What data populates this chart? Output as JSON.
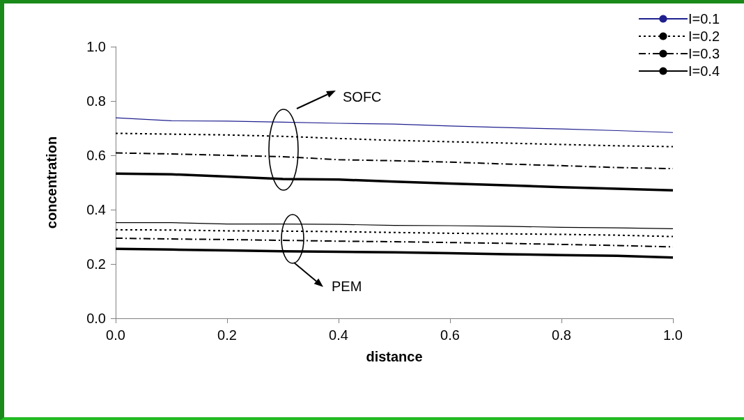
{
  "chart_data": {
    "type": "line",
    "xlabel": "distance",
    "ylabel": "concentration",
    "xlim": [
      0,
      1
    ],
    "ylim": [
      0,
      1
    ],
    "xticks": [
      {
        "value": 0,
        "label": "0.0"
      },
      {
        "value": 0.2,
        "label": "0.2"
      },
      {
        "value": 0.4,
        "label": "0.4"
      },
      {
        "value": 0.6,
        "label": "0.6"
      },
      {
        "value": 0.8,
        "label": "0.8"
      },
      {
        "value": 1,
        "label": "1.0"
      }
    ],
    "yticks": [
      {
        "value": 0,
        "label": "0.0"
      },
      {
        "value": 0.2,
        "label": "0.2"
      },
      {
        "value": 0.4,
        "label": "0.4"
      },
      {
        "value": 0.6,
        "label": "0.6"
      },
      {
        "value": 0.8,
        "label": "0.8"
      },
      {
        "value": 1,
        "label": "1.0"
      }
    ],
    "x": [
      0,
      0.1,
      0.2,
      0.3,
      0.4,
      0.5,
      0.6,
      0.7,
      0.8,
      0.9,
      1
    ],
    "grid": false,
    "legend": "top right",
    "marker": "none",
    "annotations": [
      "SOFC",
      "PEM"
    ],
    "series": [
      {
        "name": "I=0.1",
        "color": "#1f1f8f",
        "line_style": "solid",
        "values": [
          0.738,
          0.727,
          0.726,
          0.722,
          0.718,
          0.715,
          0.708,
          0.702,
          0.697,
          0.691,
          0.684
        ]
      },
      {
        "name": "I=0.2",
        "color": "#000000",
        "line_style": "dotted",
        "values": [
          0.681,
          0.678,
          0.675,
          0.67,
          0.662,
          0.655,
          0.65,
          0.645,
          0.64,
          0.635,
          0.632
        ]
      },
      {
        "name": "I=0.3",
        "color": "#000000",
        "line_style": "dashed",
        "values": [
          0.609,
          0.605,
          0.6,
          0.595,
          0.584,
          0.58,
          0.575,
          0.568,
          0.562,
          0.555,
          0.551
        ]
      },
      {
        "name": "I=0.4",
        "color": "#000000",
        "line_style": "solid",
        "values": [
          0.533,
          0.53,
          0.522,
          0.513,
          0.511,
          0.503,
          0.496,
          0.49,
          0.483,
          0.477,
          0.471
        ]
      },
      {
        "color": "#000000",
        "line_style": "solid",
        "values": [
          0.352,
          0.352,
          0.347,
          0.347,
          0.346,
          0.342,
          0.341,
          0.339,
          0.335,
          0.333,
          0.33
        ]
      },
      {
        "color": "#000000",
        "line_style": "dotted",
        "values": [
          0.326,
          0.325,
          0.322,
          0.321,
          0.319,
          0.316,
          0.313,
          0.311,
          0.309,
          0.306,
          0.301
        ]
      },
      {
        "color": "#000000",
        "line_style": "dashed",
        "values": [
          0.295,
          0.292,
          0.29,
          0.287,
          0.284,
          0.282,
          0.279,
          0.276,
          0.272,
          0.268,
          0.263
        ]
      },
      {
        "color": "#000000",
        "line_style": "solid",
        "values": [
          0.256,
          0.253,
          0.25,
          0.247,
          0.245,
          0.243,
          0.24,
          0.236,
          0.233,
          0.23,
          0.224
        ]
      }
    ]
  }
}
